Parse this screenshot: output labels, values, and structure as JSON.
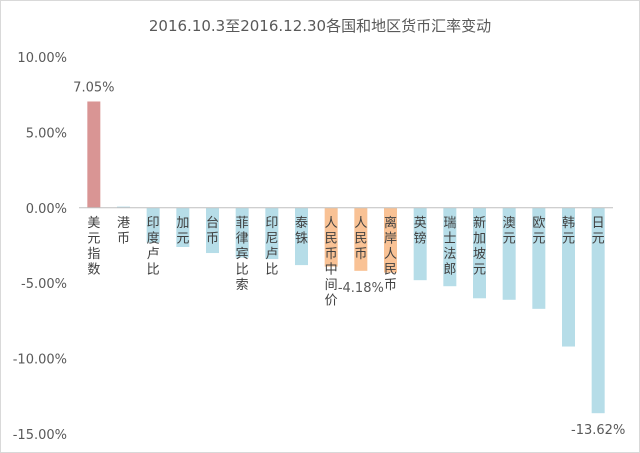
{
  "chart_data": {
    "type": "bar",
    "title": "2016.10.3至2016.12.30各国和地区货币汇率变动",
    "xlabel": "",
    "ylabel": "",
    "ylim": [
      -15,
      10
    ],
    "y_ticks": [
      "10.00%",
      "5.00%",
      "0.00%",
      "-5.00%",
      "-10.00%",
      "-15.00%"
    ],
    "grid": false,
    "legend": "none",
    "categories": [
      "美元指数",
      "港币",
      "印度卢比",
      "加元",
      "台币",
      "菲律宾比索",
      "印尼卢比",
      "泰铢",
      "人民币中间价",
      "人民币",
      "离岸人民币",
      "英镑",
      "瑞士法郎",
      "新加坡元",
      "澳元",
      "欧元",
      "韩元",
      "日元"
    ],
    "values": [
      7.05,
      0.08,
      -2.3,
      -2.6,
      -3.0,
      -3.3,
      -3.4,
      -3.8,
      -3.9,
      -4.18,
      -4.3,
      -4.8,
      -5.2,
      -6.0,
      -6.1,
      -6.7,
      -9.2,
      -13.62
    ],
    "data_labels": [
      {
        "index": 0,
        "text": "7.05%"
      },
      {
        "index": 9,
        "text": "-4.18%"
      },
      {
        "index": 17,
        "text": "-13.62%"
      }
    ],
    "colors": {
      "usd": "#d99594",
      "cny": "#f9c295",
      "other": "#b6dde8",
      "axis": "#bfbfbf"
    },
    "color_groups": [
      "usd",
      "other",
      "other",
      "other",
      "other",
      "other",
      "other",
      "other",
      "cny",
      "cny",
      "cny",
      "other",
      "other",
      "other",
      "other",
      "other",
      "other",
      "other"
    ]
  }
}
